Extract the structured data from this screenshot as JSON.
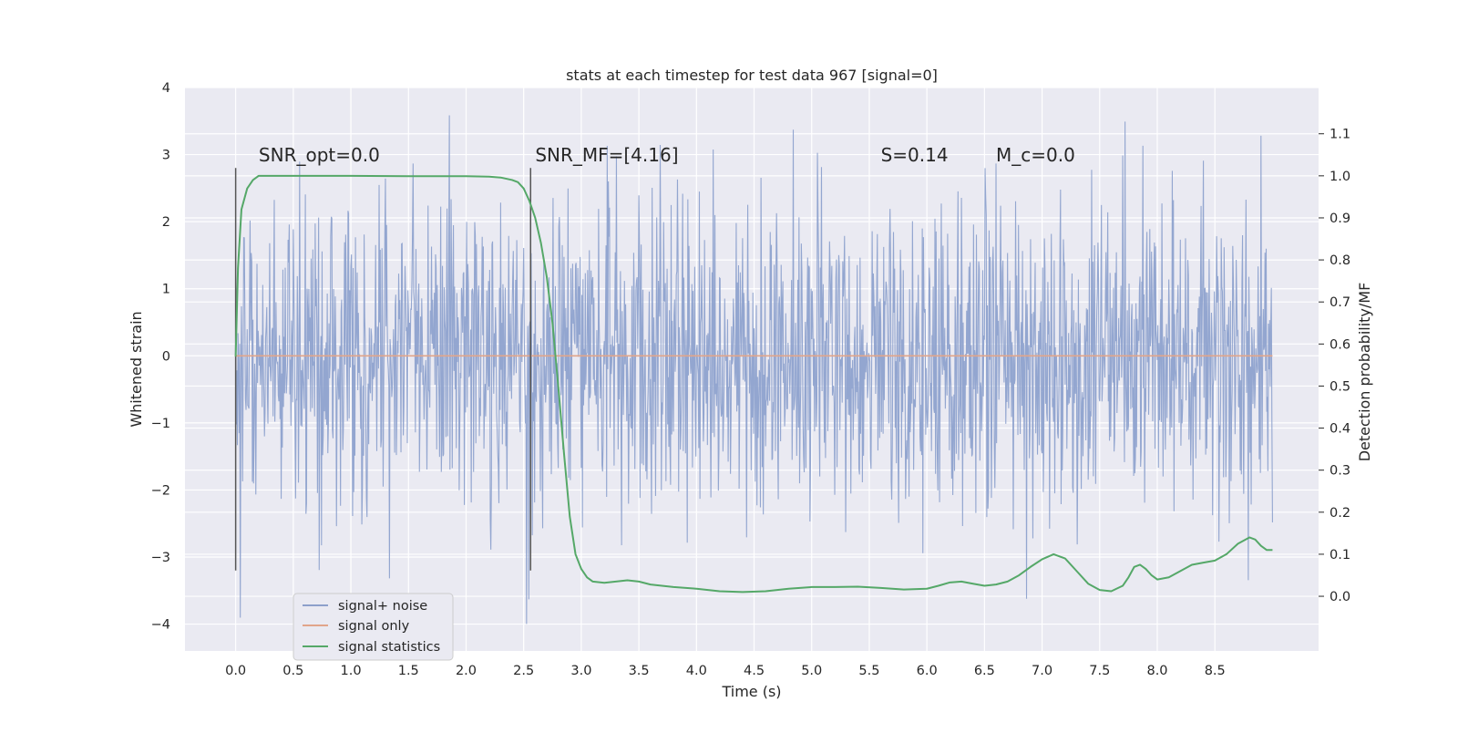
{
  "chart_data": {
    "type": "line",
    "title": "stats at each timestep for test data 967 [signal=0]",
    "xlabel": "Time (s)",
    "ylabel": "Whitened strain",
    "ylabel_right": "Detection probability/MF",
    "xlim": [
      -0.44,
      9.4
    ],
    "ylim": [
      -4.4,
      4.0
    ],
    "ylim_right": [
      -0.13,
      1.21
    ],
    "x_ticks": [
      "0.0",
      "0.5",
      "1.0",
      "1.5",
      "2.0",
      "2.5",
      "3.0",
      "3.5",
      "4.0",
      "4.5",
      "5.0",
      "5.5",
      "6.0",
      "6.5",
      "7.0",
      "7.5",
      "8.0",
      "8.5"
    ],
    "y_ticks": [
      "−4",
      "−3",
      "−2",
      "−1",
      "0",
      "1",
      "2",
      "3",
      "4"
    ],
    "y_ticks_right": [
      "0.0",
      "0.1",
      "0.2",
      "0.3",
      "0.4",
      "0.5",
      "0.6",
      "0.7",
      "0.8",
      "0.9",
      "1.0",
      "1.1"
    ],
    "annotations": [
      {
        "text": "SNR_opt=0.0",
        "x": 0.2,
        "y": 2.9
      },
      {
        "text": "SNR_MF=[4.16]",
        "x": 2.6,
        "y": 2.9
      },
      {
        "text": "S=0.14",
        "x": 5.6,
        "y": 2.9
      },
      {
        "text": "M_c=0.0",
        "x": 6.6,
        "y": 2.9
      }
    ],
    "vlines": [
      {
        "x": 0.0,
        "ymin": -3.2,
        "ymax": 2.8
      },
      {
        "x": 2.56,
        "ymin": -3.2,
        "ymax": 2.8
      }
    ],
    "legend": {
      "placement": "lower-left",
      "entries": [
        {
          "label": "signal+ noise",
          "color": "#8da0cb"
        },
        {
          "label": "signal only",
          "color": "#e1a58a"
        },
        {
          "label": "signal statistics",
          "color": "#55a868"
        }
      ]
    },
    "series": [
      {
        "name": "signal+ noise",
        "axis": "left",
        "color": "#8ea2cd",
        "description": "whitened noise band, roughly uniform amplitude ±1.6 with spikes reaching ±3.6",
        "x_range": [
          0.0,
          9.0
        ],
        "band": [
          -1.6,
          1.6
        ],
        "extremes": [
          -4.0,
          3.6
        ]
      },
      {
        "name": "signal only",
        "axis": "left",
        "color": "#e1a58a",
        "x": [
          0.0,
          9.0
        ],
        "y": [
          0.0,
          0.0
        ]
      },
      {
        "name": "signal statistics",
        "axis": "right",
        "color": "#55a868",
        "x": [
          0.0,
          0.02,
          0.05,
          0.1,
          0.15,
          0.2,
          0.3,
          0.5,
          1.0,
          1.5,
          2.0,
          2.2,
          2.3,
          2.4,
          2.45,
          2.5,
          2.55,
          2.6,
          2.65,
          2.7,
          2.75,
          2.8,
          2.85,
          2.9,
          2.95,
          3.0,
          3.05,
          3.1,
          3.2,
          3.3,
          3.4,
          3.5,
          3.6,
          3.8,
          4.0,
          4.2,
          4.4,
          4.6,
          4.8,
          5.0,
          5.2,
          5.4,
          5.6,
          5.8,
          6.0,
          6.1,
          6.2,
          6.3,
          6.4,
          6.5,
          6.6,
          6.7,
          6.8,
          6.9,
          7.0,
          7.1,
          7.2,
          7.3,
          7.4,
          7.5,
          7.6,
          7.7,
          7.75,
          7.8,
          7.85,
          7.9,
          7.95,
          8.0,
          8.1,
          8.2,
          8.3,
          8.4,
          8.5,
          8.6,
          8.7,
          8.8,
          8.85,
          8.9,
          8.95,
          9.0
        ],
        "y": [
          0.57,
          0.78,
          0.92,
          0.97,
          0.99,
          1.0,
          1.0,
          1.0,
          1.0,
          0.999,
          0.999,
          0.998,
          0.996,
          0.99,
          0.985,
          0.97,
          0.94,
          0.9,
          0.84,
          0.76,
          0.65,
          0.5,
          0.34,
          0.19,
          0.1,
          0.065,
          0.045,
          0.035,
          0.032,
          0.035,
          0.038,
          0.035,
          0.028,
          0.022,
          0.018,
          0.012,
          0.01,
          0.012,
          0.018,
          0.022,
          0.022,
          0.023,
          0.02,
          0.016,
          0.018,
          0.025,
          0.033,
          0.035,
          0.03,
          0.025,
          0.028,
          0.035,
          0.05,
          0.07,
          0.088,
          0.1,
          0.09,
          0.06,
          0.03,
          0.015,
          0.012,
          0.025,
          0.045,
          0.07,
          0.075,
          0.065,
          0.05,
          0.04,
          0.045,
          0.06,
          0.075,
          0.08,
          0.085,
          0.1,
          0.125,
          0.14,
          0.135,
          0.12,
          0.11,
          0.11
        ]
      }
    ]
  }
}
